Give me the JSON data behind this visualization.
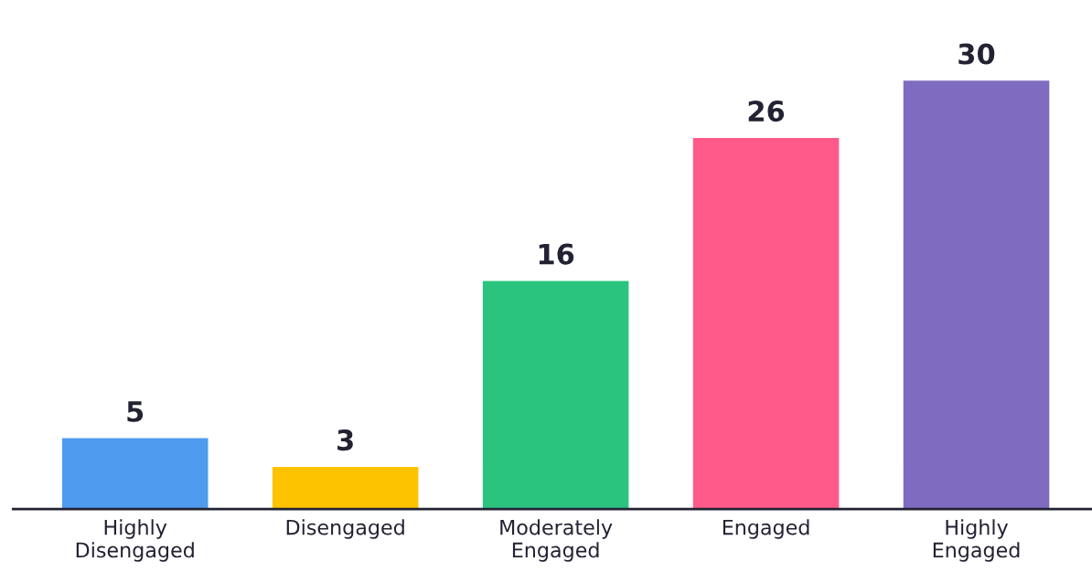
{
  "chart_data": {
    "type": "bar",
    "categories": [
      "Highly\nDisengaged",
      "Disengaged",
      "Moderately\nEngaged",
      "Engaged",
      "Highly\nEngaged"
    ],
    "values": [
      5,
      3,
      16,
      26,
      30
    ],
    "colors": [
      "#4f9bef",
      "#fdc300",
      "#2bc47e",
      "#ff5a8a",
      "#7f6bbf"
    ],
    "data_labels": true,
    "grid": false,
    "legend": false
  }
}
